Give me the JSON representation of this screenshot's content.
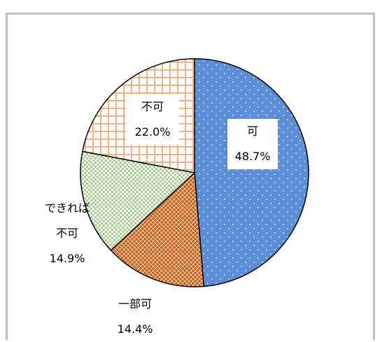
{
  "chart_data": {
    "type": "pie",
    "categories": [
      "可",
      "一部可",
      "できれば不可",
      "不可"
    ],
    "values": [
      48.7,
      14.4,
      14.9,
      22.0
    ],
    "value_labels": [
      "48.7%",
      "14.4%",
      "14.9%",
      "22.0%"
    ],
    "colors": [
      "#5b8ed6",
      "#c55a11",
      "#a9d18e",
      "#f4b183"
    ]
  }
}
